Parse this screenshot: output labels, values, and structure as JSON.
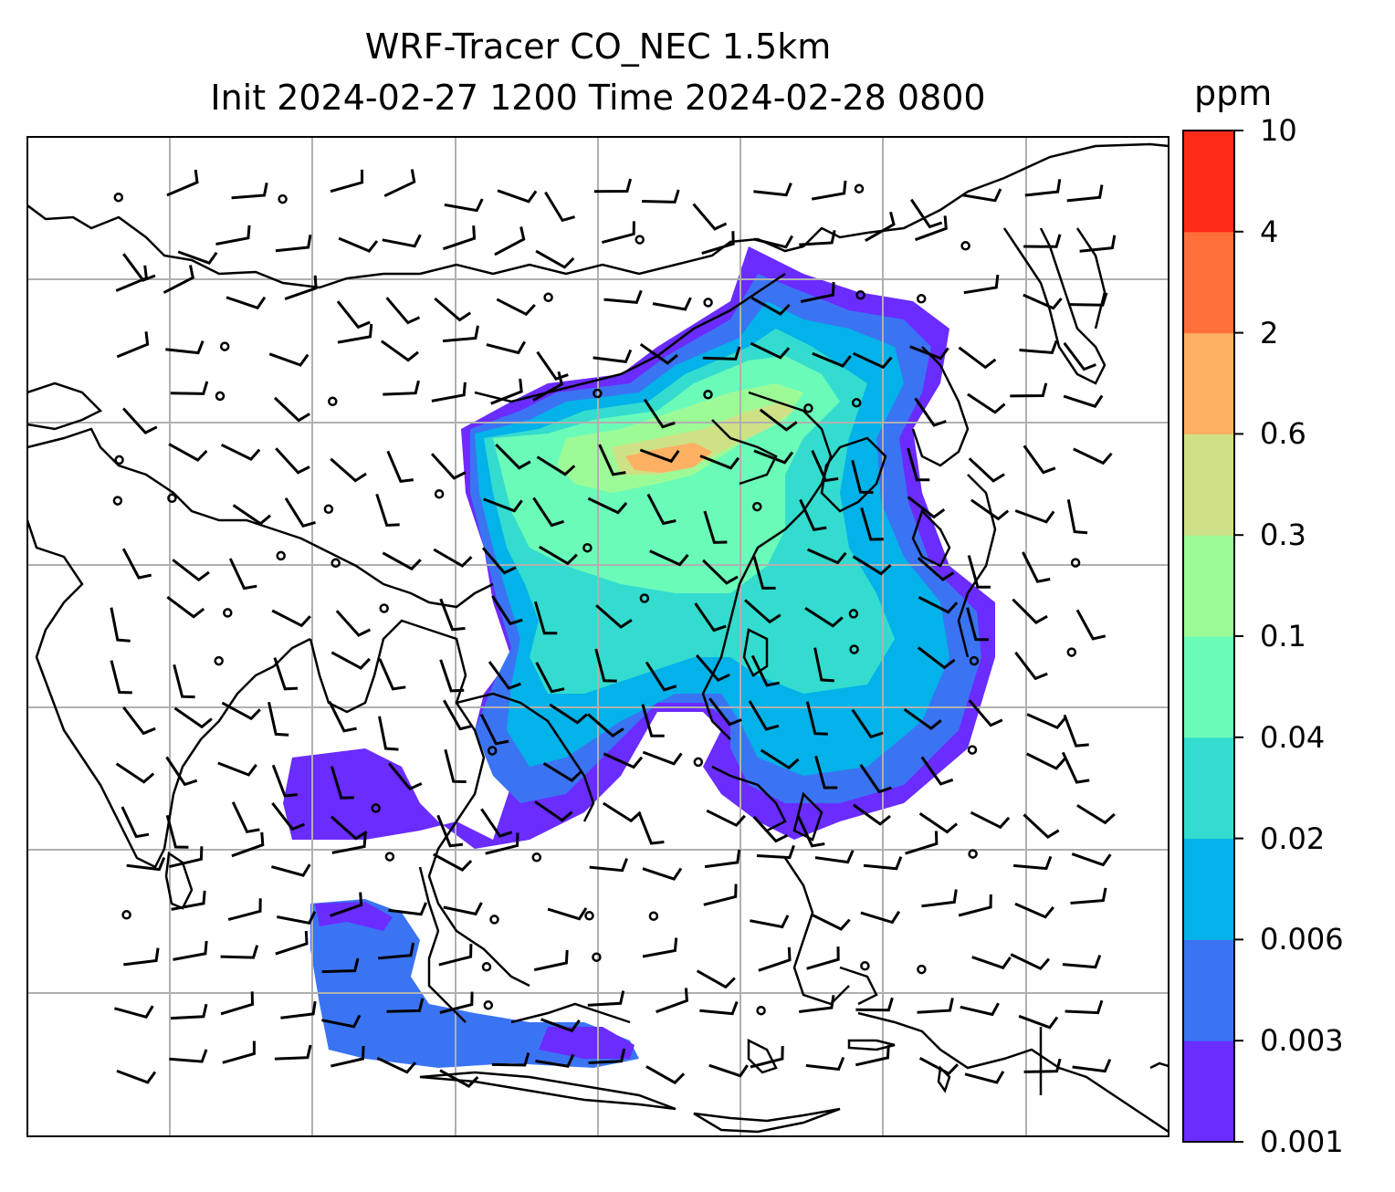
{
  "title": {
    "line1": "WRF-Tracer CO_NEC 1.5km",
    "line2": "Init 2024-02-27 1200 Time 2024-02-28 0800"
  },
  "colorbar": {
    "unit": "ppm",
    "levels": [
      "0.001",
      "0.003",
      "0.006",
      "0.02",
      "0.04",
      "0.1",
      "0.3",
      "0.6",
      "2",
      "4",
      "10"
    ],
    "colors": [
      "#6a2cff",
      "#3b74f3",
      "#03b2e9",
      "#34dccf",
      "#6bfbb9",
      "#9dfb97",
      "#cfe186",
      "#feb063",
      "#ff6f39",
      "#ff2a18"
    ]
  },
  "map": {
    "gridlines": true,
    "coastline_color": "#000000",
    "wind_barbs": true
  }
}
